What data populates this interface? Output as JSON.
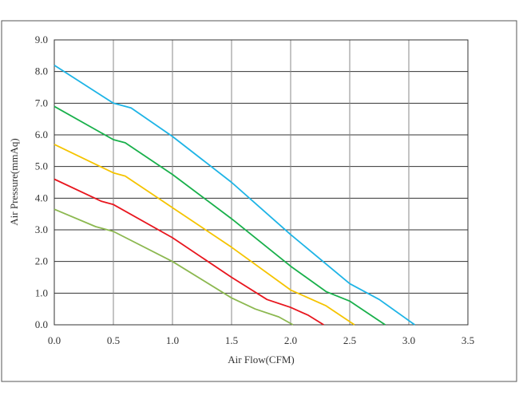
{
  "chart_data": {
    "type": "line",
    "xlabel": "Air Flow(CFM)",
    "ylabel": "Air Pressure(mmAq)",
    "xlim": [
      0,
      3.5
    ],
    "ylim": [
      0,
      9
    ],
    "xticks": [
      {
        "value": 0,
        "label": "0.0"
      },
      {
        "value": 0.5,
        "label": "0.5"
      },
      {
        "value": 1,
        "label": "1.0"
      },
      {
        "value": 1.5,
        "label": "1.5"
      },
      {
        "value": 2,
        "label": "2.0"
      },
      {
        "value": 2.5,
        "label": "2.5"
      },
      {
        "value": 3,
        "label": "3.0"
      },
      {
        "value": 3.5,
        "label": "3.5"
      }
    ],
    "yticks": [
      {
        "value": 0,
        "label": "0.0"
      },
      {
        "value": 1,
        "label": "1.0"
      },
      {
        "value": 2,
        "label": "2.0"
      },
      {
        "value": 3,
        "label": "3.0"
      },
      {
        "value": 4,
        "label": "4.0"
      },
      {
        "value": 5,
        "label": "5.0"
      },
      {
        "value": 6,
        "label": "6.0"
      },
      {
        "value": 7,
        "label": "7.0"
      },
      {
        "value": 8,
        "label": "8.0"
      },
      {
        "value": 9,
        "label": "9.0"
      }
    ],
    "grid": true,
    "series": [
      {
        "color": "#1eb4e6",
        "x": [
          0,
          0.5,
          0.65,
          1.0,
          1.5,
          2.0,
          2.5,
          2.75,
          3.05
        ],
        "values": [
          8.2,
          7.0,
          6.85,
          5.95,
          4.5,
          2.85,
          1.3,
          0.8,
          0
        ]
      },
      {
        "color": "#19b04b",
        "x": [
          0,
          0.5,
          0.6,
          1.0,
          1.5,
          2.0,
          2.3,
          2.5,
          2.8
        ],
        "values": [
          6.9,
          5.85,
          5.75,
          4.75,
          3.35,
          1.85,
          1.05,
          0.75,
          0
        ]
      },
      {
        "color": "#f5c400",
        "x": [
          0,
          0.5,
          0.6,
          1.0,
          1.5,
          2.0,
          2.3,
          2.54
        ],
        "values": [
          5.7,
          4.8,
          4.7,
          3.7,
          2.45,
          1.1,
          0.6,
          0
        ]
      },
      {
        "color": "#e8161e",
        "x": [
          0,
          0.4,
          0.5,
          1.0,
          1.5,
          1.8,
          2.0,
          2.15,
          2.28
        ],
        "values": [
          4.6,
          3.9,
          3.8,
          2.75,
          1.5,
          0.8,
          0.55,
          0.3,
          0
        ]
      },
      {
        "color": "#8cb850",
        "x": [
          0,
          0.35,
          0.5,
          1.0,
          1.5,
          1.7,
          1.9,
          2.02
        ],
        "values": [
          3.65,
          3.1,
          2.95,
          2.0,
          0.85,
          0.5,
          0.25,
          0
        ]
      }
    ]
  }
}
